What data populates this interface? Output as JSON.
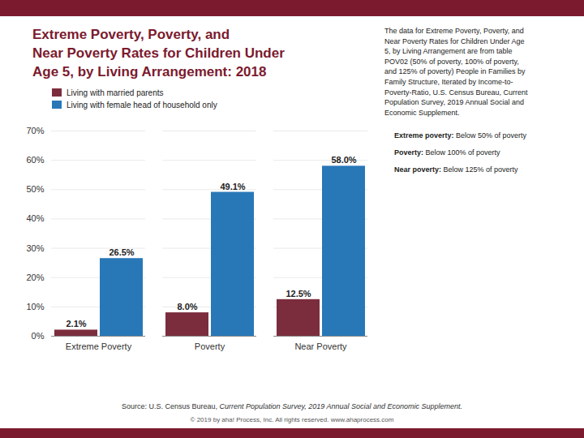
{
  "chart_data": {
    "type": "bar",
    "title": "Extreme Poverty, Poverty, and\nNear Poverty Rates for Children Under\nAge 5, by Living Arrangement: 2018",
    "categories": [
      "Extreme Poverty",
      "Poverty",
      "Near Poverty"
    ],
    "series": [
      {
        "name": "Living with married parents",
        "color": "#7B2D3E",
        "values": [
          2.1,
          8.0,
          12.5
        ],
        "value_labels": [
          "2.1%",
          "8.0%",
          "12.5%"
        ]
      },
      {
        "name": "Living with female head of household only",
        "color": "#2878B8",
        "values": [
          26.5,
          49.1,
          58.0
        ],
        "value_labels": [
          "26.5%",
          "49.1%",
          "58.0%"
        ]
      }
    ],
    "ylim": [
      0,
      70
    ],
    "yticks": [
      {
        "value": 0,
        "label": "0%"
      },
      {
        "value": 10,
        "label": "10%"
      },
      {
        "value": 20,
        "label": "20%"
      },
      {
        "value": 30,
        "label": "30%"
      },
      {
        "value": 40,
        "label": "40%"
      },
      {
        "value": 50,
        "label": "50%"
      },
      {
        "value": 60,
        "label": "60%"
      },
      {
        "value": 70,
        "label": "70%"
      }
    ],
    "grid": true,
    "legend": "upper left",
    "data_labels": true,
    "annotations": [
      "The data for Extreme Poverty, Poverty, and\nNear Poverty Rates for Children Under Age\n5, by Living Arrangement are from table\nPOV02 (50% of poverty, 100% of poverty,\nand 125% of poverty) People in Families by\nFamily Structure, Iterated by Income-to-\nPoverty-Ratio, U.S. Census Bureau, Current\nPopulation Survey, 2019 Annual Social and\nEconomic Supplement.",
      "Extreme poverty: Below 50% of poverty",
      "Poverty: Below 100% of poverty",
      "Near poverty: Below 125% of poverty",
      "Source: U.S. Census Bureau, Current Population Survey, 2019 Annual Social and Economic Supplement.",
      "© 2019 by aha! Process, Inc. All rights reserved. www.ahaprocess.com"
    ]
  }
}
